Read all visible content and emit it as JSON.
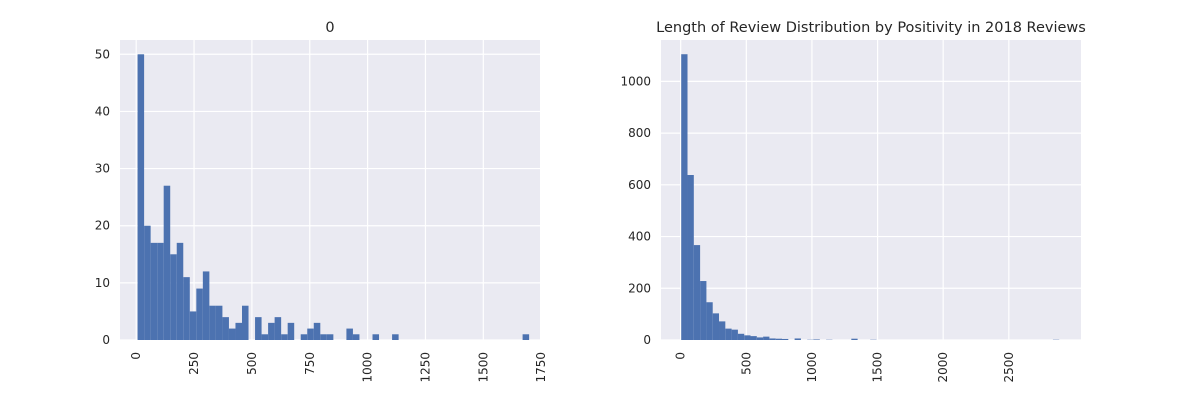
{
  "chart_data": [
    {
      "type": "bar",
      "title": "0",
      "xlabel": "",
      "ylabel": "",
      "xlim": [
        -70,
        1745
      ],
      "ylim": [
        0,
        52.5
      ],
      "xticks": [
        0,
        250,
        500,
        750,
        1000,
        1250,
        1500,
        1750
      ],
      "yticks": [
        0,
        10,
        20,
        30,
        40,
        50
      ],
      "grid": true,
      "bar_color": "#4c72b0",
      "bins": {
        "start": 6,
        "width": 28.2
      },
      "values": [
        50,
        20,
        17,
        17,
        27,
        15,
        17,
        11,
        5,
        9,
        12,
        6,
        6,
        4,
        2,
        3,
        6,
        0,
        4,
        1,
        3,
        4,
        1,
        3,
        0,
        1,
        2,
        3,
        1,
        1,
        0,
        0,
        2,
        1,
        0,
        0,
        1,
        0,
        0,
        1,
        0,
        0,
        0,
        0,
        0,
        0,
        0,
        0,
        0,
        0,
        0,
        0,
        0,
        0,
        0,
        0,
        0,
        0,
        0,
        1
      ]
    },
    {
      "type": "bar",
      "title": "Length of Review Distribution by Positivity in 2018 Reviews",
      "xlabel": "",
      "ylabel": "",
      "xlim": [
        -150,
        3050
      ],
      "ylim": [
        0,
        1160
      ],
      "xticks": [
        0,
        500,
        1000,
        1500,
        2000,
        2500
      ],
      "yticks": [
        0,
        200,
        400,
        600,
        800,
        1000
      ],
      "grid": true,
      "bar_color": "#4c72b0",
      "bins": {
        "start": 4,
        "width": 48
      },
      "values": [
        1105,
        638,
        367,
        228,
        146,
        103,
        72,
        44,
        40,
        24,
        18,
        15,
        10,
        13,
        6,
        5,
        4,
        0,
        6,
        0,
        1,
        2,
        0,
        1,
        0,
        0,
        0,
        5,
        0,
        0,
        1,
        0,
        0,
        0,
        0,
        0,
        0,
        0,
        0,
        0,
        0,
        0,
        0,
        0,
        0,
        0,
        0,
        0,
        0,
        0,
        0,
        0,
        0,
        0,
        0,
        0,
        0,
        0,
        0,
        1
      ]
    }
  ]
}
